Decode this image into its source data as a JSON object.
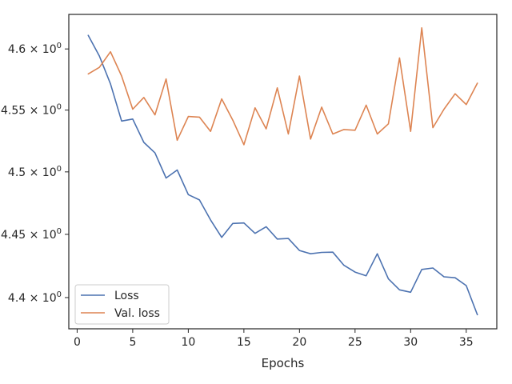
{
  "chart_data": {
    "type": "line",
    "title": "",
    "xlabel": "Epochs",
    "ylabel": "",
    "yscale": "log",
    "xlim": [
      -0.75,
      37.75
    ],
    "ylim": [
      4.3755,
      4.6285
    ],
    "grid": false,
    "legend_position": "lower-left",
    "x_ticks": [
      {
        "value": 0,
        "label": "0"
      },
      {
        "value": 5,
        "label": "5"
      },
      {
        "value": 10,
        "label": "10"
      },
      {
        "value": 15,
        "label": "15"
      },
      {
        "value": 20,
        "label": "20"
      },
      {
        "value": 25,
        "label": "25"
      },
      {
        "value": 30,
        "label": "30"
      },
      {
        "value": 35,
        "label": "35"
      }
    ],
    "y_ticks": [
      {
        "value": 4.4,
        "base": "4.4",
        "mult": "× 10",
        "exp": "0"
      },
      {
        "value": 4.45,
        "base": "4.45",
        "mult": "× 10",
        "exp": "0"
      },
      {
        "value": 4.5,
        "base": "4.5",
        "mult": "× 10",
        "exp": "0"
      },
      {
        "value": 4.55,
        "base": "4.55",
        "mult": "× 10",
        "exp": "0"
      },
      {
        "value": 4.6,
        "base": "4.6",
        "mult": "× 10",
        "exp": "0"
      }
    ],
    "x": [
      1,
      2,
      3,
      4,
      5,
      6,
      7,
      8,
      9,
      10,
      11,
      12,
      13,
      14,
      15,
      16,
      17,
      18,
      19,
      20,
      21,
      22,
      23,
      24,
      25,
      26,
      27,
      28,
      29,
      30,
      31,
      32,
      33,
      34,
      35,
      36
    ],
    "series": [
      {
        "name": "Loss",
        "color": "#4c72b0",
        "values": [
          4.6112,
          4.5942,
          4.5714,
          4.5411,
          4.5427,
          4.5238,
          4.5153,
          4.4951,
          4.5015,
          4.4817,
          4.4775,
          4.4615,
          4.4476,
          4.4587,
          4.4591,
          4.4508,
          4.4561,
          4.4463,
          4.4467,
          4.4372,
          4.4346,
          4.4357,
          4.4359,
          4.4255,
          4.4201,
          4.4172,
          4.4346,
          4.4147,
          4.4061,
          4.4042,
          4.4222,
          4.4233,
          4.4164,
          4.4156,
          4.4094,
          4.3865
        ]
      },
      {
        "name": "Val. loss",
        "color": "#dd8452",
        "values": [
          4.5795,
          4.5849,
          4.5977,
          4.5778,
          4.5507,
          4.5603,
          4.5461,
          4.5754,
          4.5255,
          4.5448,
          4.5443,
          4.5327,
          4.5591,
          4.5418,
          4.5219,
          4.5518,
          4.5347,
          4.5681,
          4.5306,
          4.5778,
          4.5265,
          4.5524,
          4.5306,
          4.5342,
          4.5336,
          4.554,
          4.5306,
          4.5388,
          4.5926,
          4.5327,
          4.6174,
          4.5357,
          4.5507,
          4.5633,
          4.5545,
          4.5719
        ]
      }
    ]
  }
}
